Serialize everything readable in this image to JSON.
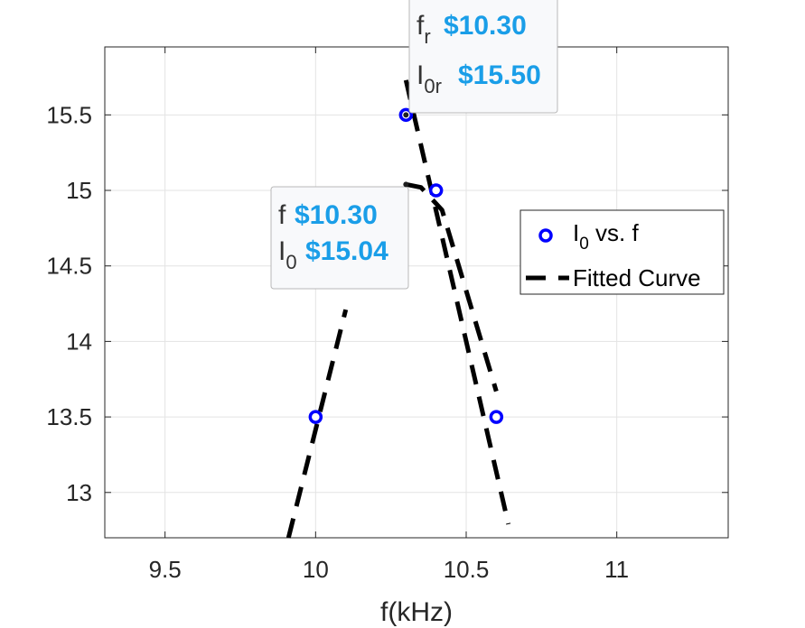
{
  "chart_data": {
    "type": "scatter",
    "xlabel": "f(kHz)",
    "ylabel": "",
    "xlim": [
      9.3,
      11.37
    ],
    "ylim": [
      12.7,
      15.95
    ],
    "x_ticks": [
      9.5,
      10,
      10.5,
      11
    ],
    "x_tick_labels": [
      "9.5",
      "10",
      "10.5",
      "11"
    ],
    "y_ticks": [
      13,
      13.5,
      14,
      14.5,
      15,
      15.5
    ],
    "y_tick_labels": [
      "13",
      "13.5",
      "14",
      "14.5",
      "15",
      "15.5"
    ],
    "grid": true,
    "legend_position": "right",
    "colors": {
      "marker": "#0000ff",
      "fit": "#000000",
      "accent": "#1a9ee8"
    },
    "series": [
      {
        "name": "I",
        "name_sub": "0",
        "name_suffix": " vs. f",
        "kind": "markers",
        "x": [
          10.0,
          10.3,
          10.4,
          10.6
        ],
        "y": [
          13.5,
          15.5,
          15.0,
          13.5
        ]
      },
      {
        "name": "Fitted Curve",
        "kind": "dashed-line",
        "segments": [
          {
            "x": [
              9.91,
              10.1
            ],
            "y": [
              12.7,
              14.21
            ]
          },
          {
            "x": [
              10.3,
              10.64
            ],
            "y": [
              15.73,
              12.79
            ]
          },
          {
            "x": [
              10.3,
              10.35,
              10.42,
              10.6
            ],
            "y": [
              15.04,
              15.02,
              14.87,
              13.67
            ]
          }
        ]
      }
    ],
    "annotations": [
      {
        "key1": "f",
        "key1_sub": "r",
        "val1": "$10.30",
        "key2": "I",
        "key2_sub": "0r",
        "val2": "$15.50",
        "point": [
          10.3,
          15.5
        ]
      },
      {
        "key1": "f",
        "key1_sub": "",
        "val1": "$10.30",
        "key2": "I",
        "key2_sub": "0",
        "val2": "$15.04",
        "point": [
          10.3,
          15.04
        ]
      }
    ]
  }
}
